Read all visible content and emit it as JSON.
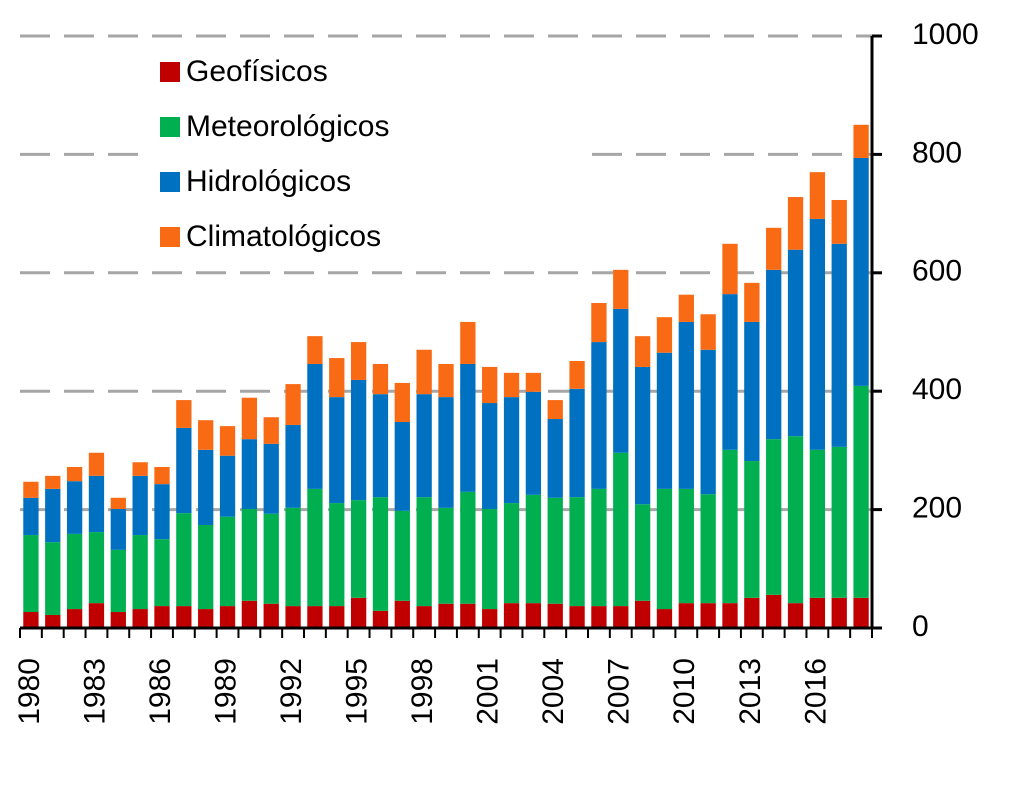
{
  "chart_data": {
    "type": "stacked_bar",
    "categories": [
      "1980",
      null,
      null,
      "1983",
      null,
      null,
      "1986",
      null,
      null,
      "1989",
      null,
      null,
      "1992",
      null,
      null,
      "1995",
      null,
      null,
      "1998",
      null,
      null,
      "2001",
      null,
      null,
      "2004",
      null,
      null,
      "2007",
      null,
      null,
      "2010",
      null,
      null,
      "2013",
      null,
      null,
      "2016",
      null,
      null
    ],
    "series": [
      {
        "name": "Geofísicos",
        "color": "#c00000",
        "values": [
          27,
          22,
          32,
          42,
          27,
          32,
          37,
          37,
          32,
          37,
          46,
          41,
          37,
          37,
          37,
          51,
          29,
          46,
          37,
          41,
          41,
          32,
          42,
          42,
          41,
          37,
          37,
          37,
          46,
          32,
          42,
          42,
          42,
          51,
          56,
          42,
          51,
          51,
          51
        ]
      },
      {
        "name": "Meteorológicos",
        "color": "#00b050",
        "values": [
          130,
          123,
          127,
          120,
          105,
          125,
          113,
          157,
          142,
          151,
          155,
          152,
          166,
          198,
          174,
          165,
          192,
          152,
          184,
          162,
          189,
          169,
          169,
          183,
          179,
          184,
          198,
          259,
          163,
          203,
          193,
          184,
          259,
          231,
          263,
          282,
          250,
          255,
          358
        ]
      },
      {
        "name": "Hidrológicos",
        "color": "#0070c0",
        "values": [
          63,
          90,
          89,
          95,
          69,
          100,
          93,
          144,
          127,
          103,
          118,
          118,
          140,
          211,
          179,
          203,
          174,
          150,
          174,
          187,
          216,
          179,
          179,
          174,
          133,
          183,
          248,
          243,
          232,
          230,
          282,
          244,
          263,
          235,
          286,
          315,
          390,
          343,
          385
        ]
      },
      {
        "name": "Climatológicos",
        "color": "#f96a14",
        "values": [
          27,
          22,
          24,
          39,
          19,
          23,
          29,
          47,
          50,
          50,
          70,
          45,
          69,
          47,
          66,
          64,
          51,
          66,
          75,
          56,
          71,
          61,
          41,
          32,
          32,
          47,
          66,
          66,
          52,
          60,
          46,
          60,
          85,
          66,
          71,
          89,
          79,
          74,
          56
        ]
      }
    ],
    "ylim": [
      0,
      1000
    ],
    "yticks": [
      0,
      200,
      400,
      600,
      800,
      1000
    ],
    "grid": true,
    "legend": "upper left"
  }
}
